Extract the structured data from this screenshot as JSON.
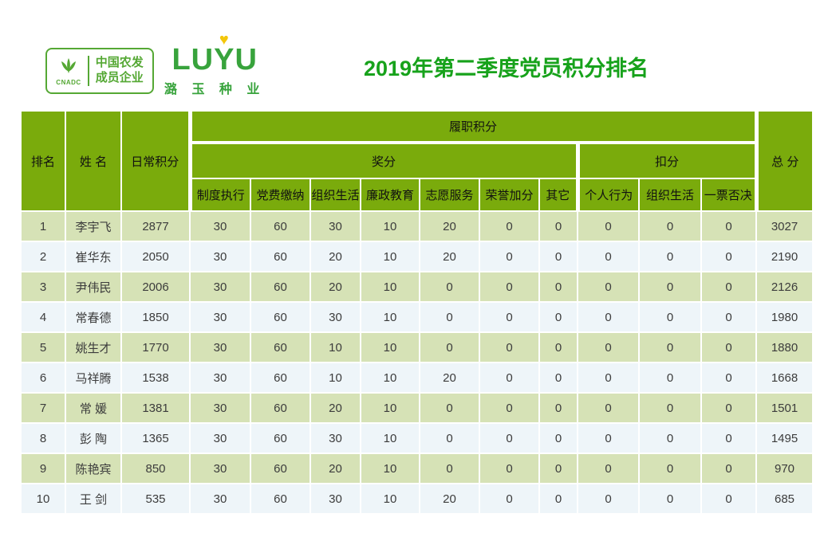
{
  "logos": {
    "cnadc": {
      "acronym": "CNADC",
      "line1": "中国农发",
      "line2": "成员企业",
      "green": "#55a834",
      "icon": "wheat-plant-icon"
    },
    "luyu": {
      "word_left": "LU",
      "word_y": "Y",
      "word_right": "U",
      "heart": "♥",
      "subtext": "潞 玉 种 业",
      "green": "#38a33c",
      "heart_yellow": "#f3c60a"
    }
  },
  "title": {
    "text": "2019年第二季度党员积分排名",
    "color": "#17a21b"
  },
  "table": {
    "colors": {
      "header_green": "#7aab0c",
      "row_green": "#d6e2b6",
      "row_light": "#eef5f9",
      "separator_white": "#ffffff",
      "text_dark": "#3c3c3c"
    },
    "headers": {
      "rank": "排名",
      "name": "姓 名",
      "daily": "日常积分",
      "performance": "履职积分",
      "award": "奖分",
      "deduction": "扣分",
      "total": "总 分",
      "sub": [
        "制度执行",
        "党费缴纳",
        "组织生活",
        "廉政教育",
        "志愿服务",
        "荣誉加分",
        "其它",
        "个人行为",
        "组织生活",
        "一票否决"
      ]
    },
    "rows": [
      {
        "rank": "1",
        "name": "李宇飞",
        "daily": "2877",
        "values": [
          "30",
          "60",
          "30",
          "10",
          "20",
          "0",
          "0",
          "0",
          "0",
          "0"
        ],
        "total": "3027"
      },
      {
        "rank": "2",
        "name": "崔华东",
        "daily": "2050",
        "values": [
          "30",
          "60",
          "20",
          "10",
          "20",
          "0",
          "0",
          "0",
          "0",
          "0"
        ],
        "total": "2190"
      },
      {
        "rank": "3",
        "name": "尹伟民",
        "daily": "2006",
        "values": [
          "30",
          "60",
          "20",
          "10",
          "0",
          "0",
          "0",
          "0",
          "0",
          "0"
        ],
        "total": "2126"
      },
      {
        "rank": "4",
        "name": "常春德",
        "daily": "1850",
        "values": [
          "30",
          "60",
          "30",
          "10",
          "0",
          "0",
          "0",
          "0",
          "0",
          "0"
        ],
        "total": "1980"
      },
      {
        "rank": "5",
        "name": "姚生才",
        "daily": "1770",
        "values": [
          "30",
          "60",
          "10",
          "10",
          "0",
          "0",
          "0",
          "0",
          "0",
          "0"
        ],
        "total": "1880"
      },
      {
        "rank": "6",
        "name": "马祥腾",
        "daily": "1538",
        "values": [
          "30",
          "60",
          "10",
          "10",
          "20",
          "0",
          "0",
          "0",
          "0",
          "0"
        ],
        "total": "1668"
      },
      {
        "rank": "7",
        "name": "常 媛",
        "daily": "1381",
        "values": [
          "30",
          "60",
          "20",
          "10",
          "0",
          "0",
          "0",
          "0",
          "0",
          "0"
        ],
        "total": "1501"
      },
      {
        "rank": "8",
        "name": "彭 陶",
        "daily": "1365",
        "values": [
          "30",
          "60",
          "30",
          "10",
          "0",
          "0",
          "0",
          "0",
          "0",
          "0"
        ],
        "total": "1495"
      },
      {
        "rank": "9",
        "name": "陈艳宾",
        "daily": "850",
        "values": [
          "30",
          "60",
          "20",
          "10",
          "0",
          "0",
          "0",
          "0",
          "0",
          "0"
        ],
        "total": "970"
      },
      {
        "rank": "10",
        "name": "王 剑",
        "daily": "535",
        "values": [
          "30",
          "60",
          "30",
          "10",
          "20",
          "0",
          "0",
          "0",
          "0",
          "0"
        ],
        "total": "685"
      }
    ]
  }
}
